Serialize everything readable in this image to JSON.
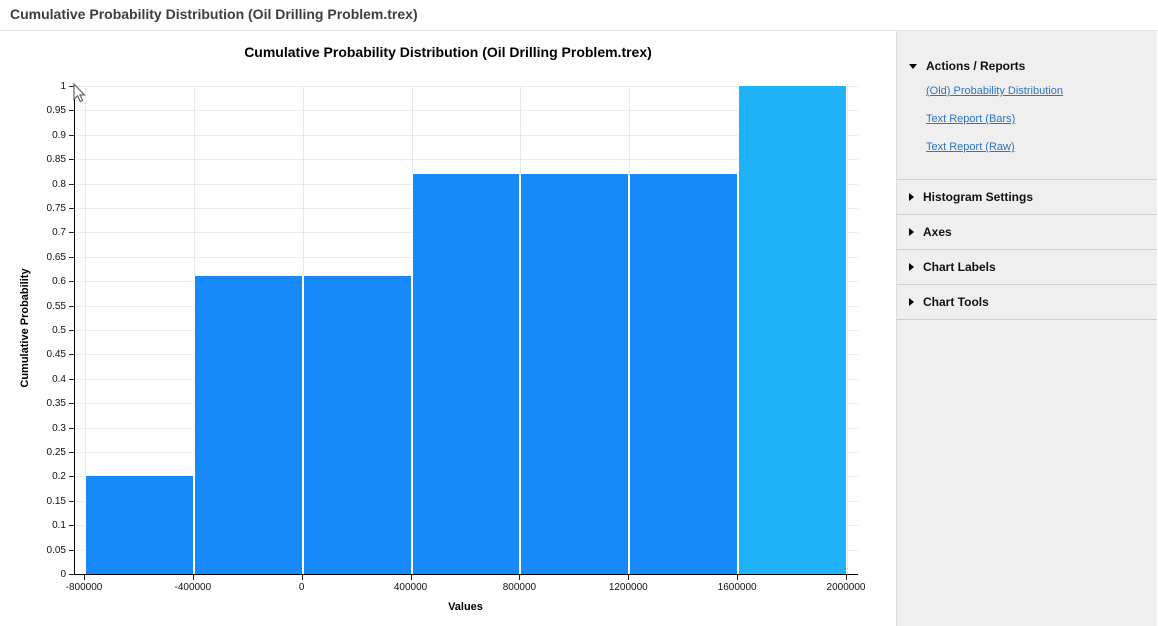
{
  "window": {
    "title": "Cumulative Probability Distribution (Oil Drilling Problem.trex)"
  },
  "chart_data": {
    "type": "bar",
    "title": "Cumulative Probability Distribution (Oil Drilling Problem.trex)",
    "xlabel": "Values",
    "ylabel": "Cumulative Probability",
    "xlim": [
      -800000,
      2000000
    ],
    "ylim": [
      0,
      1
    ],
    "grid": true,
    "x_ticks": [
      {
        "value": -800000,
        "label": "-800000"
      },
      {
        "value": -400000,
        "label": "-400000"
      },
      {
        "value": 0,
        "label": "0"
      },
      {
        "value": 400000,
        "label": "400000"
      },
      {
        "value": 800000,
        "label": "800000"
      },
      {
        "value": 1200000,
        "label": "1200000"
      },
      {
        "value": 1600000,
        "label": "1600000"
      },
      {
        "value": 2000000,
        "label": "2000000"
      }
    ],
    "y_tick_step": 0.05,
    "y_tick_labels": [
      "0",
      "0.05",
      "0.1",
      "0.15",
      "0.2",
      "0.25",
      "0.3",
      "0.35",
      "0.4",
      "0.45",
      "0.5",
      "0.55",
      "0.6",
      "0.65",
      "0.7",
      "0.75",
      "0.8",
      "0.85",
      "0.9",
      "0.95",
      "1"
    ],
    "bars": [
      {
        "x0": -800000,
        "x1": -400000,
        "value": 0.2,
        "highlighted": false
      },
      {
        "x0": -400000,
        "x1": 0,
        "value": 0.61,
        "highlighted": false
      },
      {
        "x0": 0,
        "x1": 400000,
        "value": 0.61,
        "highlighted": false
      },
      {
        "x0": 400000,
        "x1": 800000,
        "value": 0.82,
        "highlighted": false
      },
      {
        "x0": 800000,
        "x1": 1200000,
        "value": 0.82,
        "highlighted": false
      },
      {
        "x0": 1200000,
        "x1": 1600000,
        "value": 0.82,
        "highlighted": false
      },
      {
        "x0": 1600000,
        "x1": 2000000,
        "value": 1,
        "highlighted": true
      }
    ],
    "colors": {
      "bar": "#1789f8",
      "bar_highlight": "#20b2f8",
      "gridline": "#ececec",
      "axis": "#000000"
    }
  },
  "sidebar": {
    "sections": [
      {
        "label": "Actions / Reports",
        "expanded": true,
        "links": [
          "(Old) Probability Distribution",
          "Text Report (Bars)",
          "Text Report (Raw)"
        ]
      },
      {
        "label": "Histogram Settings",
        "expanded": false,
        "links": []
      },
      {
        "label": "Axes",
        "expanded": false,
        "links": []
      },
      {
        "label": "Chart Labels",
        "expanded": false,
        "links": []
      },
      {
        "label": "Chart Tools",
        "expanded": false,
        "links": []
      }
    ],
    "link_color": "#2e74c4"
  }
}
